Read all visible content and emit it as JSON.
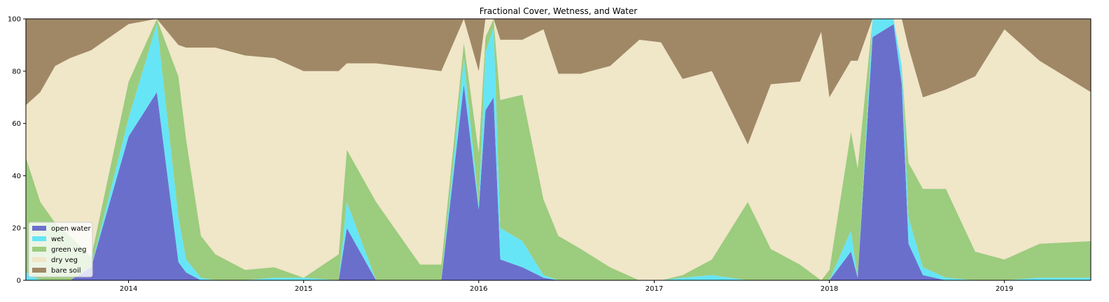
{
  "chart_data": {
    "type": "area",
    "stacked": true,
    "title": "Fractional Cover, Wetness, and Water",
    "xlabel": "",
    "ylabel": "",
    "ylim": [
      0,
      100
    ],
    "xlim": [
      "2013-06-01",
      "2019-06-30"
    ],
    "yticks": [
      0,
      20,
      40,
      60,
      80,
      100
    ],
    "xticks": [
      "2014",
      "2015",
      "2016",
      "2017",
      "2018",
      "2019"
    ],
    "grid": false,
    "legend_position": "lower-left",
    "x": [
      "2013-06-01",
      "2013-07-01",
      "2013-08-01",
      "2013-09-01",
      "2013-10-15",
      "2014-01-01",
      "2014-03-01",
      "2014-04-15",
      "2014-05-01",
      "2014-06-01",
      "2014-07-01",
      "2014-09-01",
      "2014-11-01",
      "2015-01-01",
      "2015-03-15",
      "2015-04-01",
      "2015-06-01",
      "2015-09-01",
      "2015-10-15",
      "2015-12-01",
      "2016-01-01",
      "2016-01-15",
      "2016-02-01",
      "2016-02-15",
      "2016-04-01",
      "2016-05-15",
      "2016-06-15",
      "2016-08-01",
      "2016-10-01",
      "2016-12-01",
      "2017-01-15",
      "2017-03-01",
      "2017-05-01",
      "2017-07-15",
      "2017-09-01",
      "2017-11-01",
      "2017-12-15",
      "2018-01-01",
      "2018-02-15",
      "2018-03-01",
      "2018-04-01",
      "2018-05-15",
      "2018-06-01",
      "2018-06-15",
      "2018-07-15",
      "2018-09-01",
      "2018-11-01",
      "2019-01-01",
      "2019-03-15",
      "2019-06-30"
    ],
    "series": [
      {
        "name": "open water",
        "color": "#6b6fcc",
        "values": [
          0,
          0,
          0,
          0,
          5,
          55,
          72,
          7,
          3,
          0,
          0,
          0,
          0,
          0,
          0,
          20,
          0,
          0,
          0,
          75,
          27,
          65,
          70,
          8,
          5,
          1,
          0,
          0,
          0,
          0,
          0,
          0,
          0,
          0,
          0,
          0,
          0,
          0,
          11,
          1,
          93,
          98,
          75,
          14,
          2,
          0,
          0,
          0,
          0,
          0
        ]
      },
      {
        "name": "wet",
        "color": "#66e5f6",
        "values": [
          3,
          0,
          0,
          0,
          0,
          7,
          26,
          17,
          5,
          1,
          0,
          0,
          1,
          1,
          0,
          10,
          0,
          0,
          0,
          10,
          2,
          22,
          27,
          12,
          10,
          1,
          0,
          0,
          0,
          0,
          0,
          1,
          2,
          0,
          0,
          0,
          0,
          0,
          8,
          0,
          7,
          2,
          7,
          10,
          3,
          1,
          0,
          0,
          1,
          1
        ]
      },
      {
        "name": "green veg",
        "color": "#9ccc7e",
        "values": [
          44,
          30,
          22,
          17,
          4,
          14,
          2,
          54,
          46,
          16,
          10,
          4,
          4,
          0,
          10,
          20,
          30,
          6,
          6,
          6,
          20,
          6,
          3,
          49,
          56,
          29,
          17,
          12,
          5,
          0,
          0,
          1,
          6,
          30,
          12,
          6,
          0,
          4,
          38,
          42,
          0,
          0,
          0,
          21,
          30,
          34,
          11,
          8,
          13,
          14
        ]
      },
      {
        "name": "dry veg",
        "color": "#f0e6c8",
        "values": [
          20,
          42,
          60,
          68,
          79,
          22,
          0,
          12,
          35,
          72,
          79,
          82,
          80,
          79,
          70,
          33,
          53,
          75,
          74,
          9,
          31,
          7,
          0,
          23,
          21,
          65,
          62,
          67,
          77,
          92,
          91,
          75,
          72,
          22,
          63,
          70,
          95,
          66,
          27,
          41,
          0,
          0,
          18,
          44,
          35,
          38,
          67,
          88,
          70,
          57
        ]
      },
      {
        "name": "bare soil",
        "color": "#a08866",
        "values": [
          33,
          28,
          18,
          15,
          12,
          2,
          0,
          10,
          11,
          11,
          11,
          14,
          15,
          20,
          20,
          17,
          17,
          19,
          20,
          0,
          20,
          0,
          0,
          8,
          8,
          4,
          21,
          21,
          18,
          8,
          9,
          23,
          20,
          48,
          25,
          24,
          5,
          30,
          16,
          16,
          0,
          0,
          0,
          11,
          30,
          27,
          22,
          4,
          16,
          28
        ]
      }
    ]
  }
}
